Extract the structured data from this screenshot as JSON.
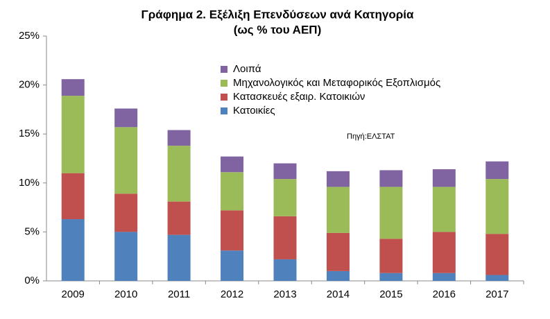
{
  "chart_data": {
    "type": "stacked-bar",
    "title": "Γράφημα 2. Εξέλιξη Επενδύσεων ανά Κατηγορία",
    "subtitle": "(ως % του ΑΕΠ)",
    "annotation": "Πηγή:ΕΛΣΤΑΤ",
    "categories": [
      "2009",
      "2010",
      "2011",
      "2012",
      "2013",
      "2014",
      "2015",
      "2016",
      "2017"
    ],
    "series": [
      {
        "name": "Κατοικίες",
        "color": "#4f81bd",
        "values": [
          6.3,
          5.0,
          4.7,
          3.1,
          2.2,
          1.0,
          0.8,
          0.8,
          0.6
        ]
      },
      {
        "name": "Κατασκευές εξαιρ. Κατοικιών",
        "color": "#c0504d",
        "values": [
          4.7,
          3.9,
          3.4,
          4.1,
          4.4,
          3.9,
          3.5,
          4.2,
          4.2
        ]
      },
      {
        "name": "Μηχανολογικός και Μεταφορικός Εξοπλισμός",
        "color": "#9bbb59",
        "values": [
          7.9,
          6.8,
          5.7,
          3.9,
          3.8,
          4.7,
          5.3,
          4.6,
          5.6
        ]
      },
      {
        "name": "Λοιπά",
        "color": "#8064a2",
        "values": [
          1.7,
          1.9,
          1.6,
          1.6,
          1.6,
          1.6,
          1.7,
          1.8,
          1.8
        ]
      }
    ],
    "ylim": [
      0,
      25
    ],
    "yticks": [
      {
        "value": 0,
        "label": "0%"
      },
      {
        "value": 5,
        "label": "5%"
      },
      {
        "value": 10,
        "label": "10%"
      },
      {
        "value": 15,
        "label": "15%"
      },
      {
        "value": 20,
        "label": "20%"
      },
      {
        "value": 25,
        "label": "25%"
      }
    ],
    "grid": false
  }
}
